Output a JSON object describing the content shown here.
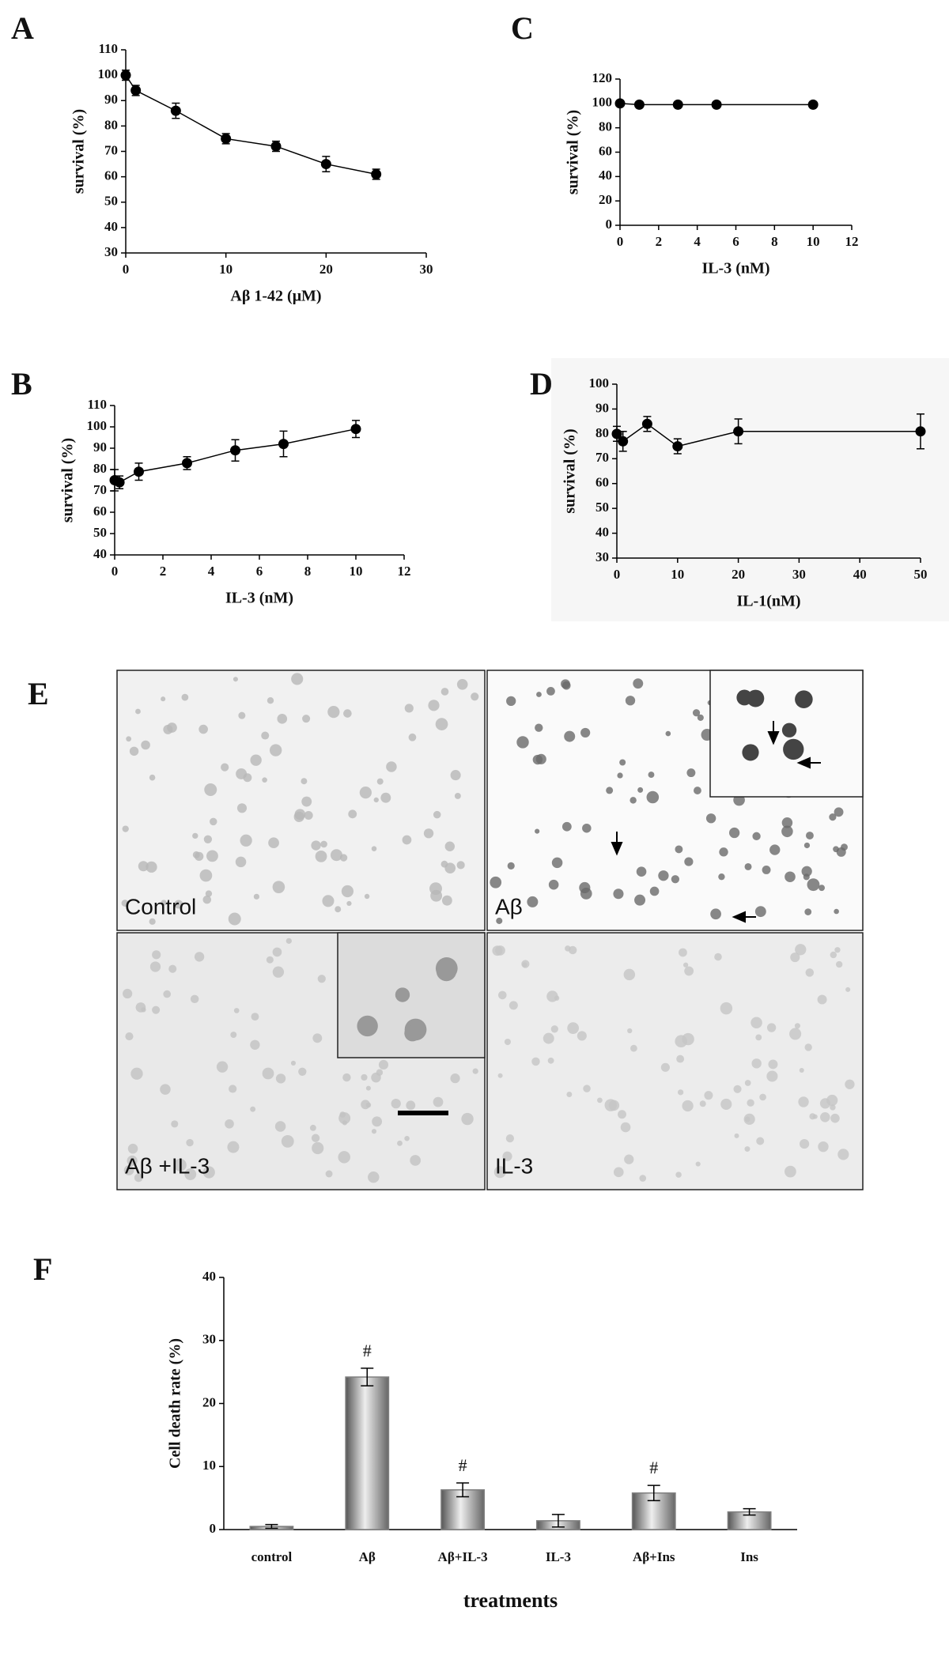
{
  "chart_data": [
    {
      "type": "line",
      "panel": "A",
      "x": [
        0,
        1,
        5,
        10,
        15,
        20,
        25
      ],
      "values": [
        100,
        94,
        86,
        75,
        72,
        65,
        61
      ],
      "errors": [
        2,
        2,
        3,
        2,
        2,
        3,
        2
      ],
      "xlim": [
        0,
        30
      ],
      "xticks": [
        0,
        10,
        20,
        30
      ],
      "ylim": [
        30,
        110
      ],
      "yticks": [
        30,
        40,
        50,
        60,
        70,
        80,
        90,
        100,
        110
      ],
      "xlabel": "Aβ 1-42 (μM)",
      "ylabel": "survival (%)",
      "color": "#000000"
    },
    {
      "type": "line",
      "panel": "B",
      "x": [
        0,
        0.2,
        1,
        3,
        5,
        7,
        10
      ],
      "values": [
        75,
        74,
        79,
        83,
        89,
        92,
        99
      ],
      "errors": [
        5,
        3,
        4,
        3,
        5,
        6,
        4
      ],
      "xlim": [
        0,
        12
      ],
      "xticks": [
        0,
        2,
        4,
        6,
        8,
        10,
        12
      ],
      "ylim": [
        40,
        110
      ],
      "yticks": [
        40,
        50,
        60,
        70,
        80,
        90,
        100,
        110
      ],
      "xlabel": "IL-3 (nM)",
      "ylabel": "survival (%)",
      "color": "#000000"
    },
    {
      "type": "line",
      "panel": "C",
      "x": [
        0,
        1,
        3,
        5,
        10
      ],
      "values": [
        100,
        99,
        99,
        99,
        99
      ],
      "errors": [
        2,
        1,
        1,
        1,
        1
      ],
      "xlim": [
        0,
        12
      ],
      "xticks": [
        0,
        2,
        4,
        6,
        8,
        10,
        12
      ],
      "ylim": [
        0,
        120
      ],
      "yticks": [
        0,
        20,
        40,
        60,
        80,
        100,
        120
      ],
      "xlabel": "IL-3 (nM)",
      "ylabel": "survival (%)",
      "color": "#000000"
    },
    {
      "type": "line",
      "panel": "D",
      "x": [
        0,
        1,
        5,
        10,
        20,
        50
      ],
      "values": [
        80,
        77,
        84,
        75,
        81,
        81
      ],
      "errors": [
        3,
        4,
        3,
        3,
        5,
        7
      ],
      "xlim": [
        0,
        50
      ],
      "xticks": [
        0,
        10,
        20,
        30,
        40,
        50
      ],
      "ylim": [
        30,
        100
      ],
      "yticks": [
        30,
        40,
        50,
        60,
        70,
        80,
        90,
        100
      ],
      "xlabel": "IL-1(nM)",
      "ylabel": "survival (%)",
      "color": "#000000"
    },
    {
      "type": "bar",
      "panel": "F",
      "categories": [
        "control",
        "Aβ",
        "Aβ+IL-3",
        "IL-3",
        "Aβ+Ins",
        "Ins"
      ],
      "values": [
        0.5,
        24.2,
        6.3,
        1.4,
        5.8,
        2.8
      ],
      "errors": [
        0.3,
        1.4,
        1.1,
        1.0,
        1.2,
        0.5
      ],
      "significant": [
        false,
        true,
        true,
        false,
        true,
        false
      ],
      "significance_mark": "#",
      "ylim": [
        0,
        40
      ],
      "yticks": [
        0,
        10,
        20,
        30,
        40
      ],
      "xlabel": "treatments",
      "ylabel": "Cell death rate (%)",
      "color": "#808080"
    }
  ],
  "micrographs": {
    "panel": "E",
    "images": [
      {
        "label": "Control"
      },
      {
        "label": "Aβ"
      },
      {
        "label": "Aβ +IL-3"
      },
      {
        "label": "IL-3"
      }
    ]
  }
}
